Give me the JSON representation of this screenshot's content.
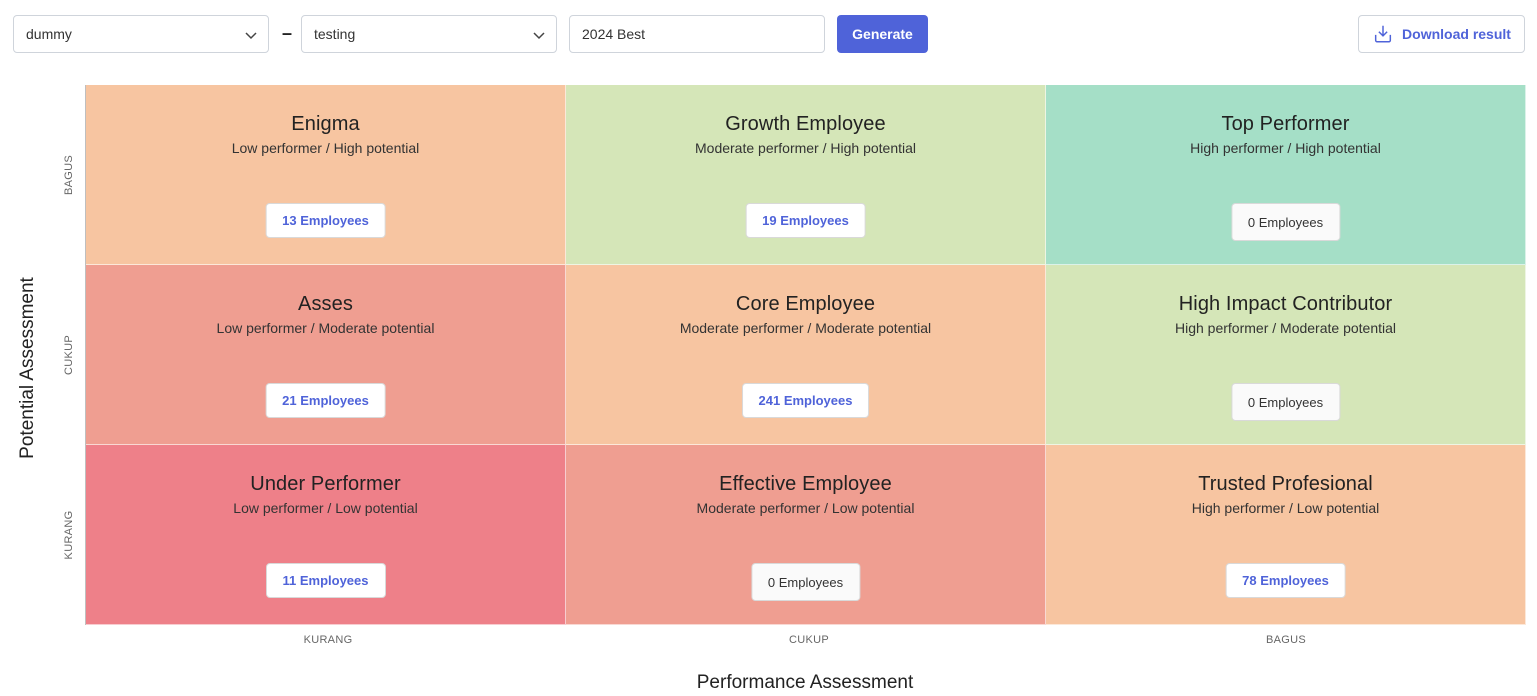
{
  "filters": {
    "select_1_value": "dummy",
    "separator": "–",
    "select_2_value": "testing",
    "name_input_value": "2024 Best",
    "generate_label": "Generate",
    "download_label": "Download result"
  },
  "axes": {
    "y_title": "Potential Assessment",
    "x_title": "Performance Assessment",
    "y_ticks": [
      "BAGUS",
      "CUKUP",
      "KURANG"
    ],
    "x_ticks": [
      "KURANG",
      "CUKUP",
      "BAGUS"
    ]
  },
  "colors": {
    "peach": "#f7c5a1",
    "light_green": "#d5e6b8",
    "mint": "#a5dfc7",
    "salmon": "#ef9e91",
    "red": "#ee8089",
    "accent": "#4f63d9"
  },
  "grid": [
    {
      "title": "Enigma",
      "subtitle": "Low performer / High potential",
      "count": "13 Employees",
      "color": "#f7c5a1",
      "zero": false
    },
    {
      "title": "Growth Employee",
      "subtitle": "Moderate performer / High potential",
      "count": "19 Employees",
      "color": "#d5e6b8",
      "zero": false
    },
    {
      "title": "Top Performer",
      "subtitle": "High performer / High potential",
      "count": "0 Employees",
      "color": "#a5dfc7",
      "zero": true
    },
    {
      "title": "Asses",
      "subtitle": "Low performer / Moderate potential",
      "count": "21 Employees",
      "color": "#ef9e91",
      "zero": false
    },
    {
      "title": "Core Employee",
      "subtitle": "Moderate performer / Moderate potential",
      "count": "241 Employees",
      "color": "#f7c5a1",
      "zero": false
    },
    {
      "title": "High Impact Contributor",
      "subtitle": "High performer / Moderate potential",
      "count": "0 Employees",
      "color": "#d5e6b8",
      "zero": true
    },
    {
      "title": "Under Performer",
      "subtitle": "Low performer / Low potential",
      "count": "11 Employees",
      "color": "#ee8089",
      "zero": false
    },
    {
      "title": "Effective Employee",
      "subtitle": "Moderate performer / Low potential",
      "count": "0 Employees",
      "color": "#ef9e91",
      "zero": true
    },
    {
      "title": "Trusted Profesional",
      "subtitle": "High performer / Low potential",
      "count": "78 Employees",
      "color": "#f7c5a1",
      "zero": false
    }
  ]
}
